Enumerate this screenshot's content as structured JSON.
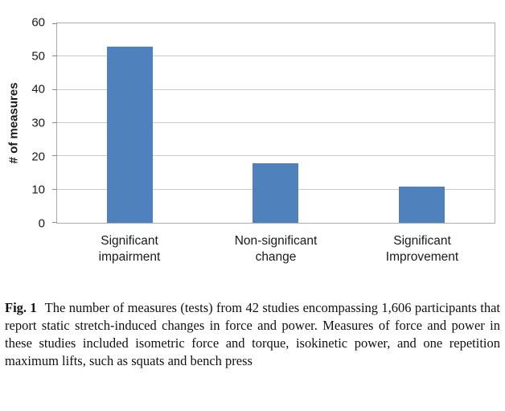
{
  "chart_data": {
    "type": "bar",
    "categories": [
      "Significant\nimpairment",
      "Non-significant\nchange",
      "Significant\nImprovement"
    ],
    "values": [
      53,
      18,
      11
    ],
    "title": "",
    "xlabel": "",
    "ylabel": "# of measures",
    "ylim": [
      0,
      60
    ],
    "ytick_interval": 10,
    "ytick_labels": [
      "0",
      "10",
      "20",
      "30",
      "40",
      "50",
      "60"
    ],
    "bar_color": "#4f81bd",
    "grid": true,
    "legend": false
  },
  "caption": {
    "label": "Fig. 1",
    "text": "The number of measures (tests) from 42 studies encompassing 1,606 participants that report static stretch-induced changes in force and power. Measures of force and power in these studies included isometric force and torque, isokinetic power, and one repetition maximum lifts, such as squats and bench press"
  }
}
